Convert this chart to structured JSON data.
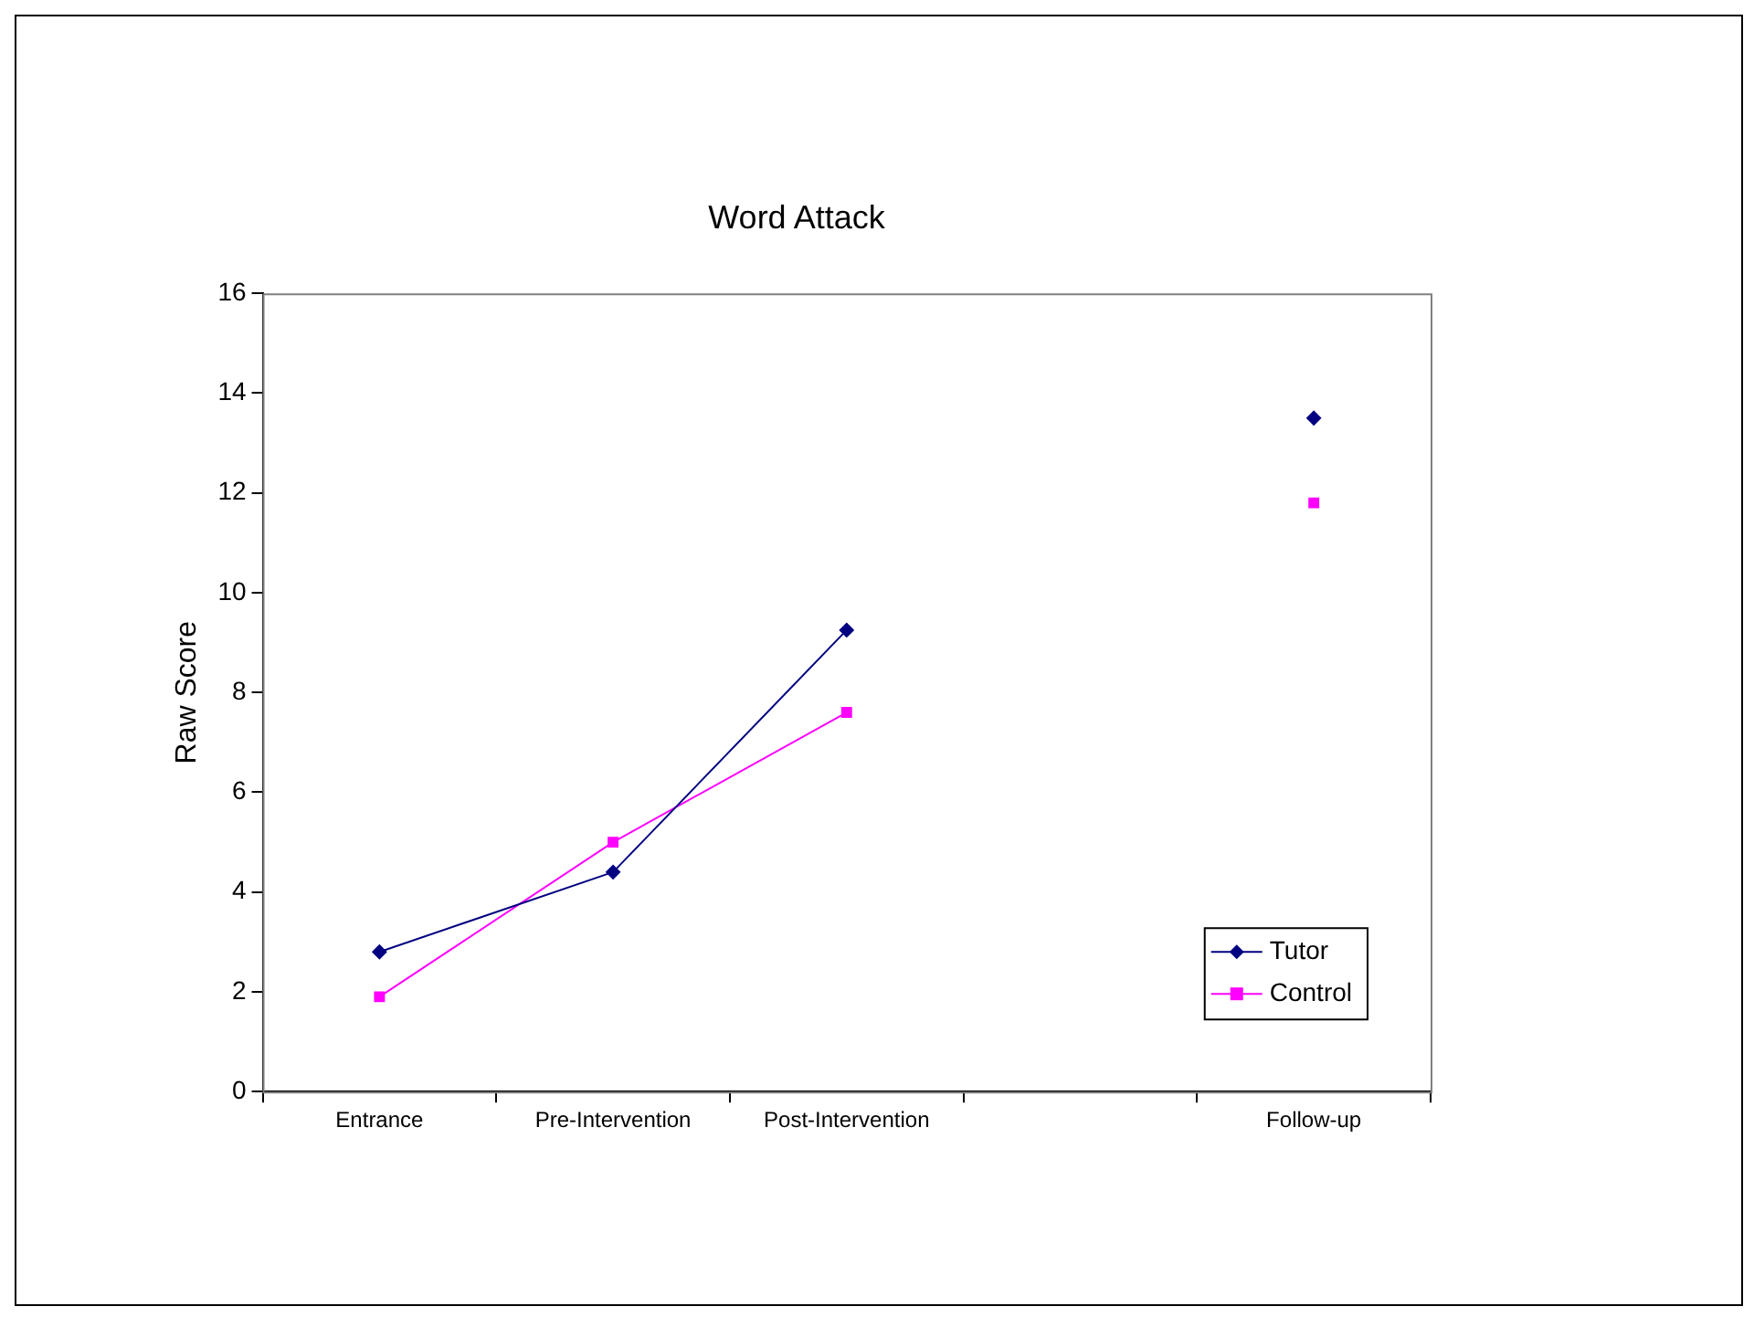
{
  "chart_data": {
    "type": "line",
    "title": "Word Attack",
    "ylabel": "Raw Score",
    "categories": [
      "Entrance",
      "Pre-Intervention",
      "Post-Intervention",
      null,
      "Follow-up"
    ],
    "series": [
      {
        "name": "Tutor",
        "color": "#000080",
        "marker": "diamond",
        "values": [
          2.8,
          4.4,
          9.25,
          null,
          13.5
        ]
      },
      {
        "name": "Control",
        "color": "#ff00ff",
        "marker": "square",
        "values": [
          1.9,
          5.0,
          7.6,
          null,
          11.8
        ]
      }
    ],
    "ylim": [
      0,
      16
    ],
    "yticks": [
      0,
      2,
      4,
      6,
      8,
      10,
      12,
      14,
      16
    ],
    "grid": false,
    "legend": "bottom right"
  }
}
